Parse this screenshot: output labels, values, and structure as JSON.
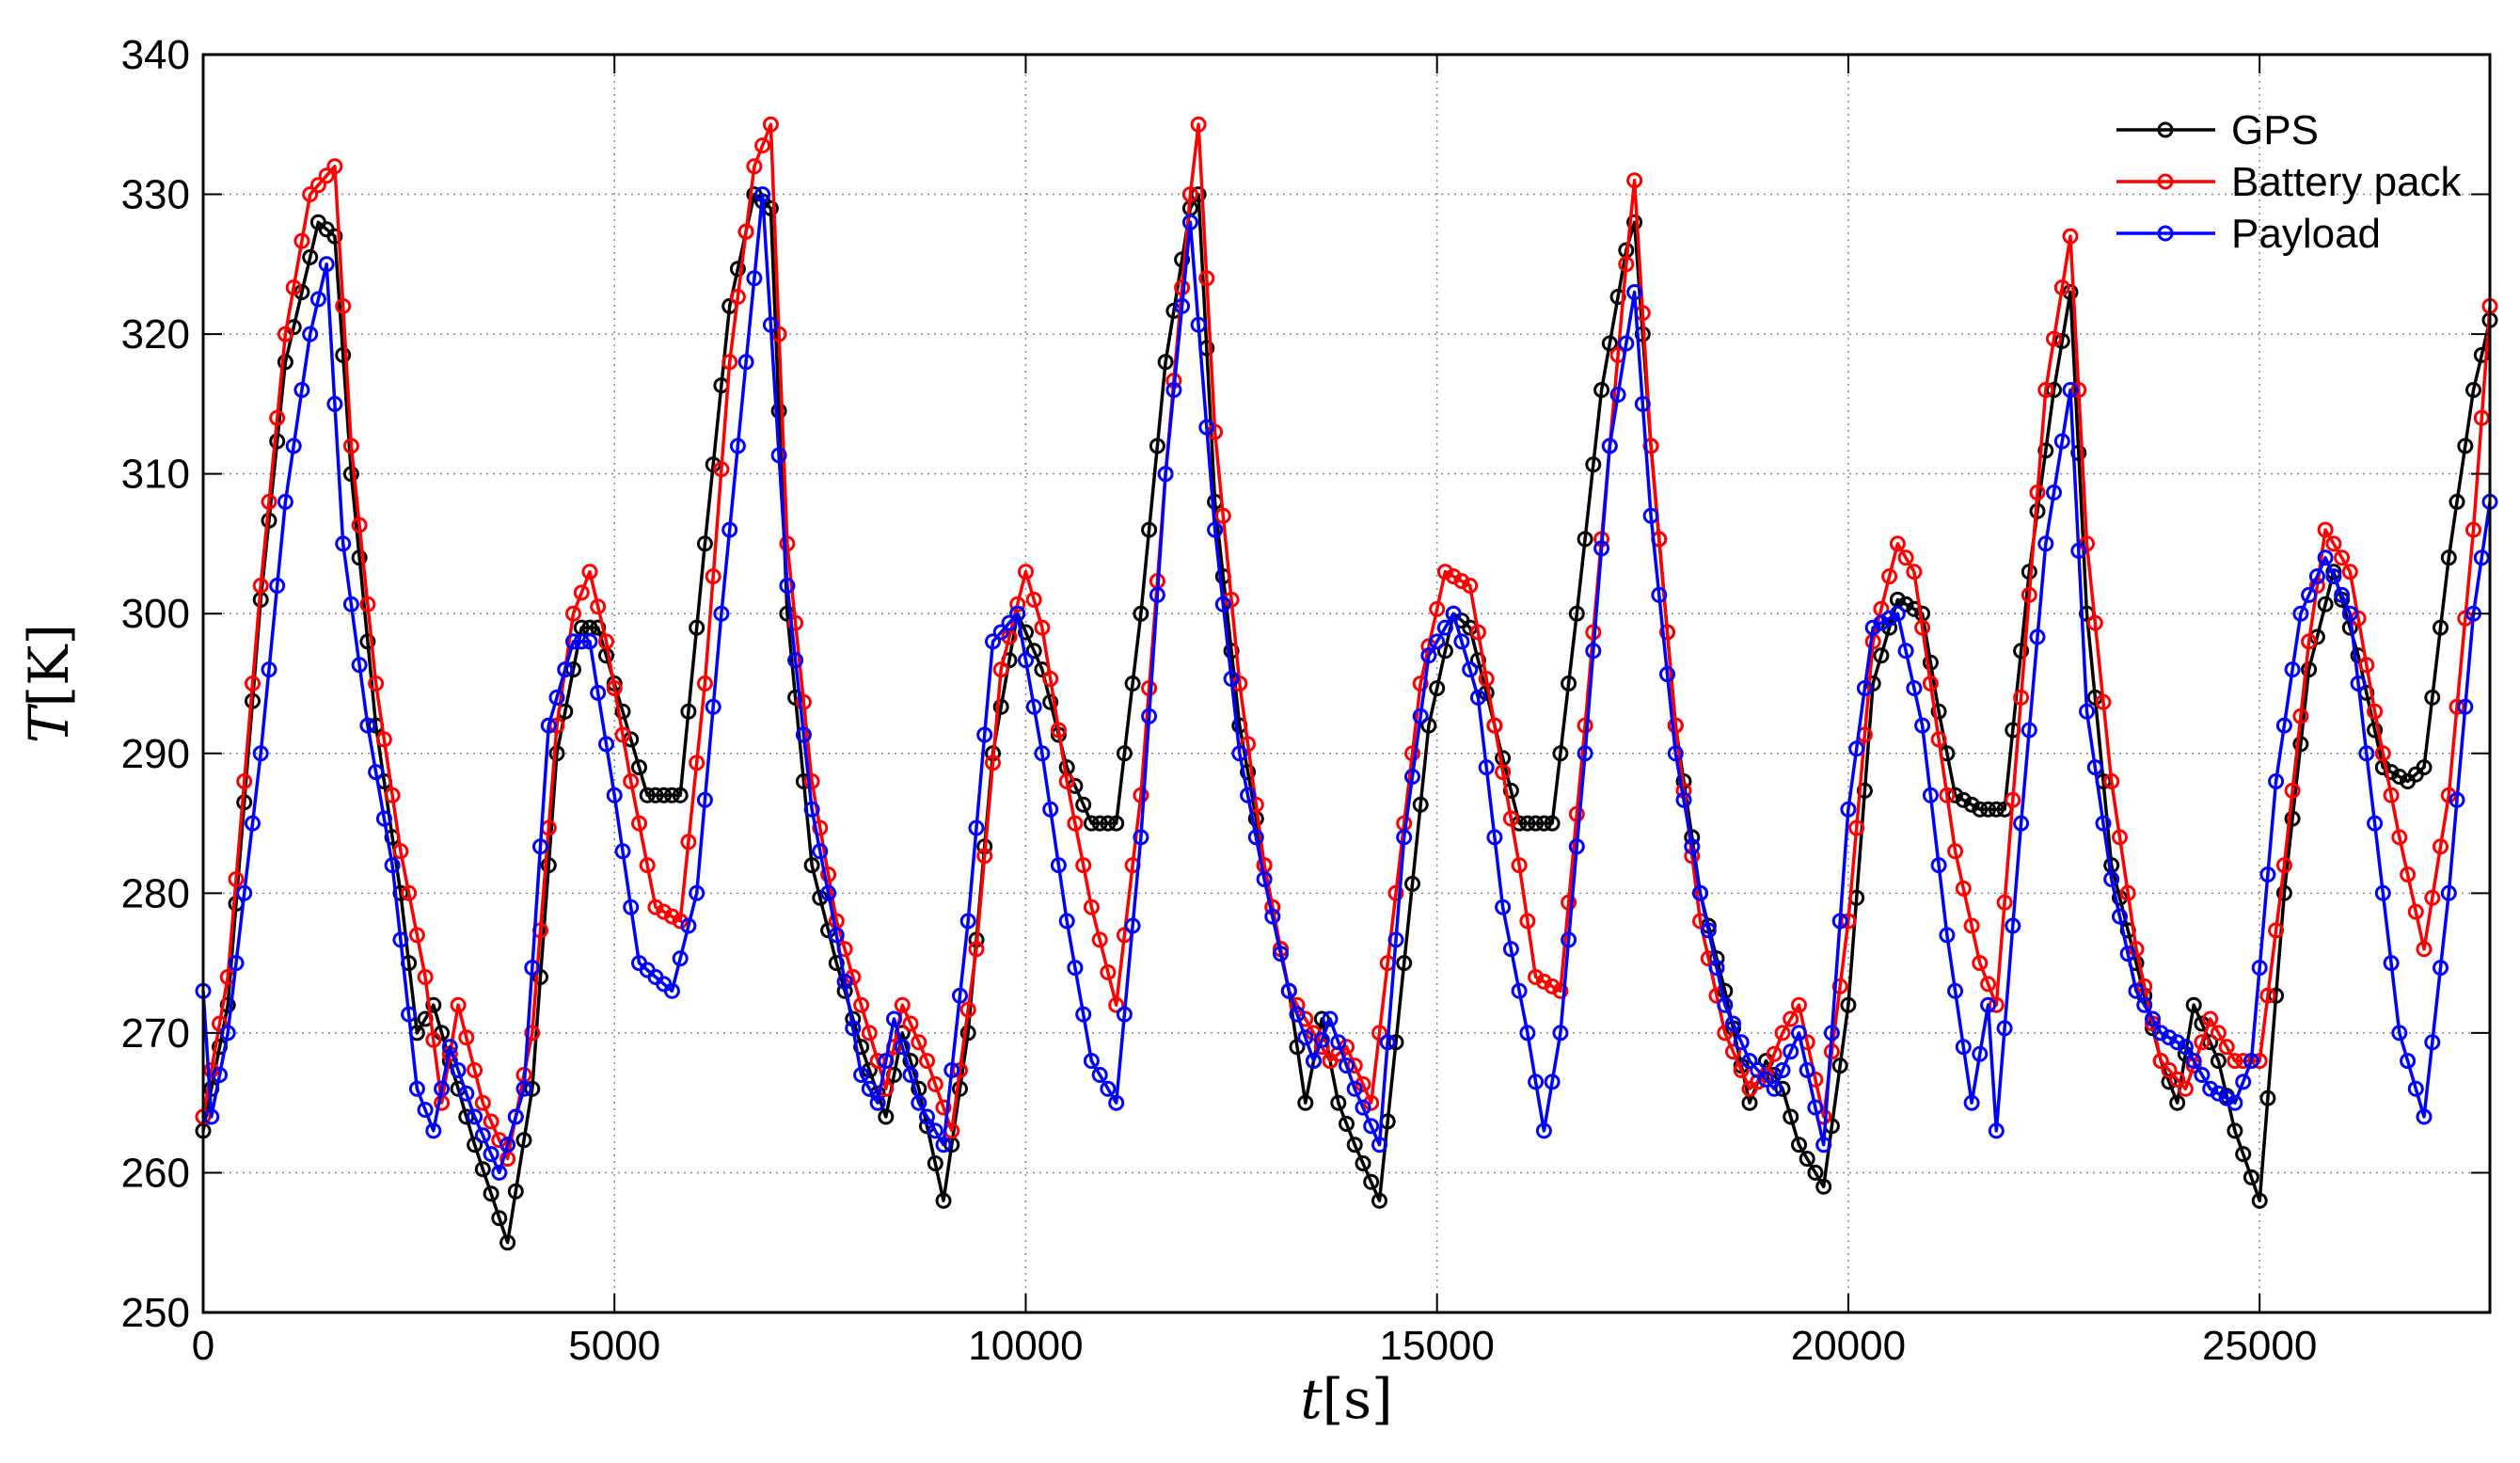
{
  "chart_data": {
    "type": "line",
    "xlabel_var": "t",
    "xlabel_unit": "[s]",
    "ylabel_var": "T",
    "ylabel_unit": "[K]",
    "xlim": [
      0,
      27800
    ],
    "ylim": [
      250,
      340
    ],
    "xticks": [
      0,
      5000,
      10000,
      15000,
      20000,
      25000
    ],
    "yticks": [
      250,
      260,
      270,
      280,
      290,
      300,
      310,
      320,
      330,
      340
    ],
    "grid": true,
    "legend_position": "top-right",
    "marker": "circle",
    "sample_step": 100,
    "series": [
      {
        "name": "GPS",
        "color": "#000000",
        "key": [
          [
            0,
            263
          ],
          [
            300,
            272
          ],
          [
            700,
            301
          ],
          [
            1000,
            318
          ],
          [
            1400,
            328
          ],
          [
            1600,
            327
          ],
          [
            1800,
            310
          ],
          [
            2100,
            292
          ],
          [
            2400,
            280
          ],
          [
            2600,
            270
          ],
          [
            2800,
            272
          ],
          [
            3000,
            268
          ],
          [
            3300,
            262
          ],
          [
            3700,
            255
          ],
          [
            4000,
            266
          ],
          [
            4300,
            290
          ],
          [
            4600,
            299
          ],
          [
            4800,
            299
          ],
          [
            5100,
            293
          ],
          [
            5400,
            287
          ],
          [
            5800,
            287
          ],
          [
            6100,
            305
          ],
          [
            6400,
            322
          ],
          [
            6700,
            330
          ],
          [
            6900,
            329
          ],
          [
            7100,
            300
          ],
          [
            7400,
            282
          ],
          [
            7700,
            275
          ],
          [
            8000,
            269
          ],
          [
            8300,
            264
          ],
          [
            8500,
            270
          ],
          [
            8700,
            266
          ],
          [
            9000,
            258
          ],
          [
            9300,
            270
          ],
          [
            9600,
            290
          ],
          [
            9900,
            300
          ],
          [
            10200,
            296
          ],
          [
            10500,
            289
          ],
          [
            10800,
            285
          ],
          [
            11100,
            285
          ],
          [
            11400,
            300
          ],
          [
            11700,
            318
          ],
          [
            12000,
            329
          ],
          [
            12100,
            330
          ],
          [
            12300,
            308
          ],
          [
            12600,
            292
          ],
          [
            12900,
            282
          ],
          [
            13200,
            273
          ],
          [
            13400,
            265
          ],
          [
            13600,
            271
          ],
          [
            13800,
            265
          ],
          [
            14000,
            262
          ],
          [
            14300,
            258
          ],
          [
            14600,
            275
          ],
          [
            14900,
            292
          ],
          [
            15200,
            300
          ],
          [
            15400,
            299
          ],
          [
            15700,
            292
          ],
          [
            16000,
            285
          ],
          [
            16400,
            285
          ],
          [
            16700,
            300
          ],
          [
            17000,
            316
          ],
          [
            17300,
            326
          ],
          [
            17400,
            328
          ],
          [
            17600,
            312
          ],
          [
            17900,
            292
          ],
          [
            18200,
            280
          ],
          [
            18500,
            273
          ],
          [
            18800,
            265
          ],
          [
            19000,
            268
          ],
          [
            19200,
            266
          ],
          [
            19400,
            262
          ],
          [
            19700,
            259
          ],
          [
            20000,
            272
          ],
          [
            20300,
            295
          ],
          [
            20600,
            301
          ],
          [
            20900,
            300
          ],
          [
            21100,
            293
          ],
          [
            21300,
            287
          ],
          [
            21600,
            286
          ],
          [
            21900,
            286
          ],
          [
            22200,
            303
          ],
          [
            22500,
            316
          ],
          [
            22700,
            323
          ],
          [
            22900,
            300
          ],
          [
            23200,
            282
          ],
          [
            23500,
            275
          ],
          [
            23800,
            268
          ],
          [
            24000,
            265
          ],
          [
            24200,
            272
          ],
          [
            24500,
            268
          ],
          [
            24700,
            263
          ],
          [
            25000,
            258
          ],
          [
            25300,
            280
          ],
          [
            25600,
            296
          ],
          [
            25900,
            303
          ],
          [
            26200,
            297
          ],
          [
            26500,
            289
          ],
          [
            26800,
            288
          ],
          [
            27000,
            289
          ],
          [
            27300,
            304
          ],
          [
            27600,
            316
          ],
          [
            27800,
            321
          ]
        ]
      },
      {
        "name": "Battery pack",
        "color": "#ff0000",
        "key": [
          [
            0,
            264
          ],
          [
            300,
            274
          ],
          [
            700,
            302
          ],
          [
            1000,
            320
          ],
          [
            1300,
            330
          ],
          [
            1600,
            332
          ],
          [
            1800,
            312
          ],
          [
            2100,
            295
          ],
          [
            2400,
            283
          ],
          [
            2700,
            274
          ],
          [
            2900,
            265
          ],
          [
            3100,
            272
          ],
          [
            3400,
            265
          ],
          [
            3700,
            261
          ],
          [
            4000,
            270
          ],
          [
            4300,
            292
          ],
          [
            4500,
            300
          ],
          [
            4700,
            303
          ],
          [
            4900,
            298
          ],
          [
            5200,
            288
          ],
          [
            5500,
            279
          ],
          [
            5800,
            278
          ],
          [
            6100,
            295
          ],
          [
            6400,
            318
          ],
          [
            6700,
            332
          ],
          [
            6900,
            335
          ],
          [
            7100,
            305
          ],
          [
            7400,
            288
          ],
          [
            7700,
            278
          ],
          [
            8000,
            272
          ],
          [
            8300,
            266
          ],
          [
            8500,
            272
          ],
          [
            8800,
            268
          ],
          [
            9100,
            263
          ],
          [
            9400,
            276
          ],
          [
            9700,
            296
          ],
          [
            10000,
            303
          ],
          [
            10200,
            299
          ],
          [
            10500,
            288
          ],
          [
            10800,
            279
          ],
          [
            11100,
            272
          ],
          [
            11400,
            287
          ],
          [
            11700,
            310
          ],
          [
            12000,
            330
          ],
          [
            12100,
            335
          ],
          [
            12300,
            313
          ],
          [
            12600,
            295
          ],
          [
            12900,
            282
          ],
          [
            13200,
            273
          ],
          [
            13500,
            270
          ],
          [
            13700,
            268
          ],
          [
            13900,
            269
          ],
          [
            14200,
            265
          ],
          [
            14500,
            280
          ],
          [
            14800,
            295
          ],
          [
            15100,
            303
          ],
          [
            15400,
            302
          ],
          [
            15700,
            292
          ],
          [
            16000,
            282
          ],
          [
            16200,
            274
          ],
          [
            16500,
            273
          ],
          [
            16800,
            292
          ],
          [
            17100,
            312
          ],
          [
            17300,
            325
          ],
          [
            17400,
            331
          ],
          [
            17600,
            312
          ],
          [
            17900,
            292
          ],
          [
            18200,
            278
          ],
          [
            18500,
            270
          ],
          [
            18800,
            266
          ],
          [
            19000,
            267
          ],
          [
            19200,
            270
          ],
          [
            19400,
            272
          ],
          [
            19700,
            264
          ],
          [
            20000,
            278
          ],
          [
            20300,
            298
          ],
          [
            20600,
            305
          ],
          [
            20800,
            303
          ],
          [
            21000,
            295
          ],
          [
            21300,
            283
          ],
          [
            21600,
            275
          ],
          [
            21800,
            272
          ],
          [
            22100,
            294
          ],
          [
            22400,
            316
          ],
          [
            22700,
            327
          ],
          [
            22900,
            305
          ],
          [
            23200,
            288
          ],
          [
            23500,
            276
          ],
          [
            23800,
            268
          ],
          [
            24100,
            266
          ],
          [
            24400,
            271
          ],
          [
            24700,
            268
          ],
          [
            25000,
            268
          ],
          [
            25300,
            282
          ],
          [
            25600,
            298
          ],
          [
            25800,
            306
          ],
          [
            26100,
            303
          ],
          [
            26400,
            293
          ],
          [
            26700,
            284
          ],
          [
            27000,
            276
          ],
          [
            27300,
            287
          ],
          [
            27600,
            306
          ],
          [
            27800,
            322
          ]
        ]
      },
      {
        "name": "Payload",
        "color": "#0000ff",
        "key": [
          [
            0,
            273
          ],
          [
            100,
            264
          ],
          [
            300,
            270
          ],
          [
            700,
            290
          ],
          [
            1000,
            308
          ],
          [
            1300,
            320
          ],
          [
            1500,
            325
          ],
          [
            1700,
            305
          ],
          [
            2000,
            292
          ],
          [
            2300,
            282
          ],
          [
            2600,
            266
          ],
          [
            2800,
            263
          ],
          [
            3000,
            269
          ],
          [
            3300,
            264
          ],
          [
            3600,
            260
          ],
          [
            3900,
            266
          ],
          [
            4200,
            292
          ],
          [
            4500,
            298
          ],
          [
            4700,
            298
          ],
          [
            5000,
            287
          ],
          [
            5300,
            275
          ],
          [
            5700,
            273
          ],
          [
            6000,
            280
          ],
          [
            6300,
            300
          ],
          [
            6600,
            318
          ],
          [
            6800,
            330
          ],
          [
            7100,
            302
          ],
          [
            7400,
            286
          ],
          [
            7700,
            277
          ],
          [
            8000,
            267
          ],
          [
            8200,
            265
          ],
          [
            8400,
            271
          ],
          [
            8700,
            265
          ],
          [
            9000,
            262
          ],
          [
            9300,
            278
          ],
          [
            9600,
            298
          ],
          [
            9900,
            300
          ],
          [
            10200,
            290
          ],
          [
            10500,
            278
          ],
          [
            10800,
            268
          ],
          [
            11100,
            265
          ],
          [
            11400,
            284
          ],
          [
            11700,
            310
          ],
          [
            12000,
            328
          ],
          [
            12300,
            306
          ],
          [
            12600,
            290
          ],
          [
            12900,
            281
          ],
          [
            13200,
            273
          ],
          [
            13500,
            268
          ],
          [
            13700,
            271
          ],
          [
            14000,
            266
          ],
          [
            14300,
            262
          ],
          [
            14600,
            284
          ],
          [
            14900,
            297
          ],
          [
            15200,
            300
          ],
          [
            15500,
            294
          ],
          [
            15800,
            279
          ],
          [
            16100,
            270
          ],
          [
            16300,
            263
          ],
          [
            16500,
            270
          ],
          [
            16800,
            290
          ],
          [
            17100,
            312
          ],
          [
            17400,
            323
          ],
          [
            17600,
            307
          ],
          [
            17900,
            290
          ],
          [
            18200,
            280
          ],
          [
            18500,
            272
          ],
          [
            18800,
            268
          ],
          [
            19100,
            266
          ],
          [
            19400,
            270
          ],
          [
            19700,
            262
          ],
          [
            20000,
            286
          ],
          [
            20300,
            299
          ],
          [
            20600,
            300
          ],
          [
            20900,
            292
          ],
          [
            21200,
            277
          ],
          [
            21500,
            265
          ],
          [
            21700,
            272
          ],
          [
            21800,
            263
          ],
          [
            22100,
            285
          ],
          [
            22400,
            305
          ],
          [
            22700,
            316
          ],
          [
            22900,
            293
          ],
          [
            23200,
            281
          ],
          [
            23500,
            273
          ],
          [
            23800,
            270
          ],
          [
            24100,
            269
          ],
          [
            24400,
            266
          ],
          [
            24700,
            265
          ],
          [
            24900,
            268
          ],
          [
            25200,
            288
          ],
          [
            25500,
            300
          ],
          [
            25800,
            304
          ],
          [
            26100,
            300
          ],
          [
            26400,
            285
          ],
          [
            26700,
            270
          ],
          [
            27000,
            264
          ],
          [
            27300,
            280
          ],
          [
            27600,
            300
          ],
          [
            27800,
            308
          ]
        ]
      }
    ]
  }
}
